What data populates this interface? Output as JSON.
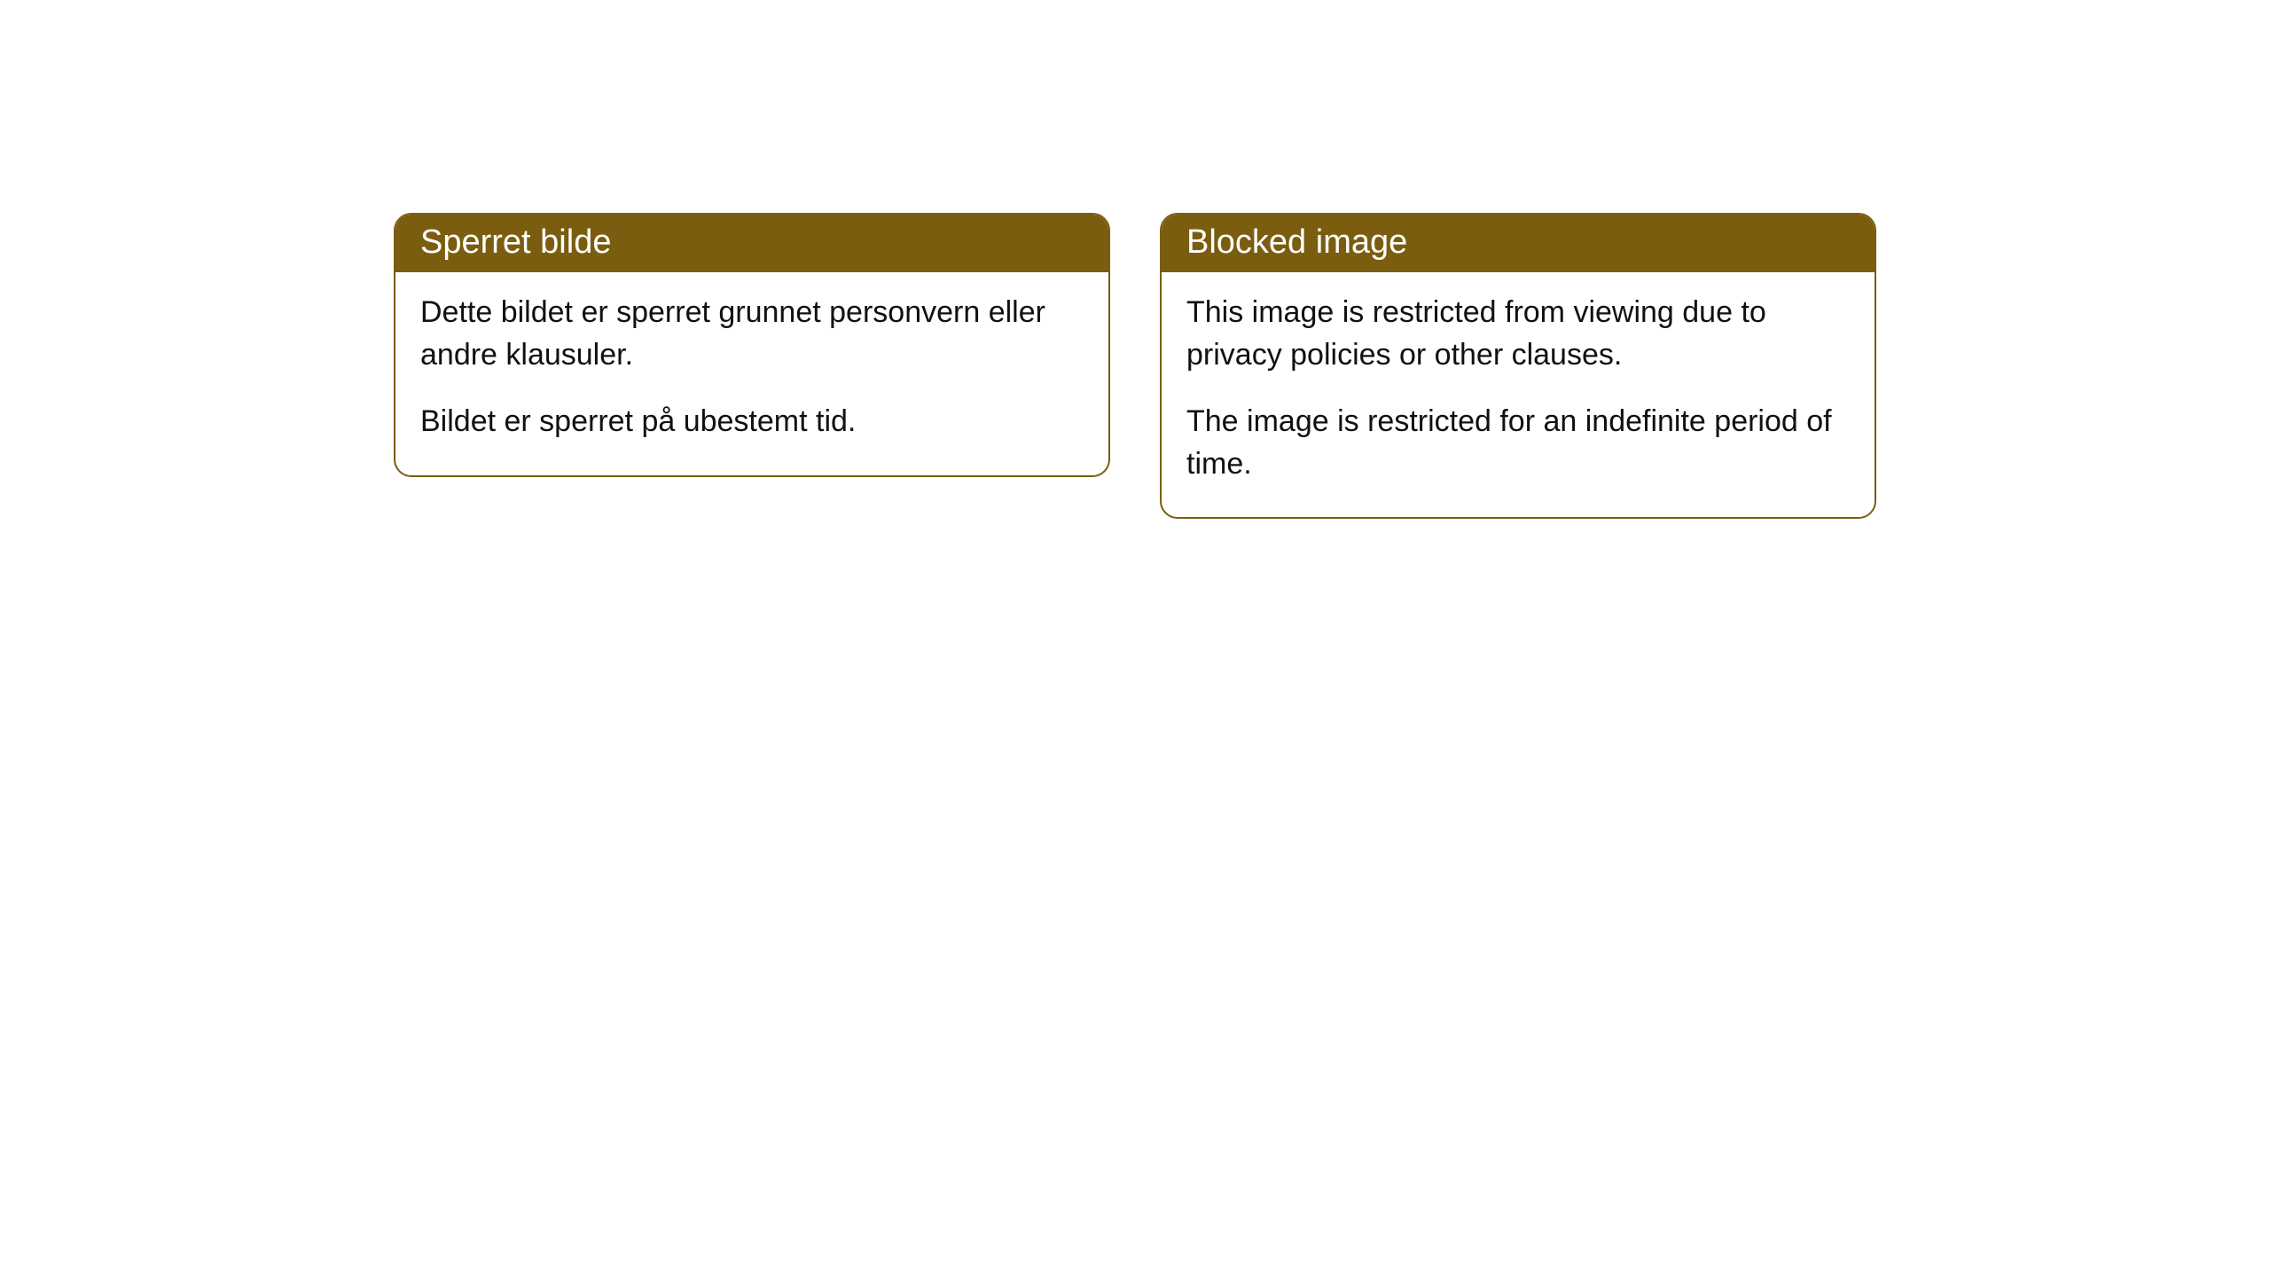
{
  "cards": [
    {
      "title": "Sperret bilde",
      "paragraph1": "Dette bildet er sperret grunnet personvern eller andre klausuler.",
      "paragraph2": "Bildet er sperret på ubestemt tid."
    },
    {
      "title": "Blocked image",
      "paragraph1": "This image is restricted from viewing due to privacy policies or other clauses.",
      "paragraph2": "The image is restricted for an indefinite period of time."
    }
  ],
  "styling": {
    "header_bg_color": "#7a5d0f",
    "header_text_color": "#ffffff",
    "border_color": "#7a5d0f",
    "body_bg_color": "#ffffff",
    "body_text_color": "#111111",
    "border_radius": 20,
    "header_font_size": 38,
    "body_font_size": 34
  }
}
